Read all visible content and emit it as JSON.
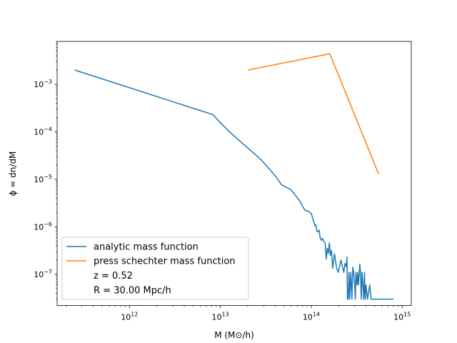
{
  "chart_data": {
    "type": "line",
    "xscale": "log",
    "yscale": "log",
    "xlim": [
      160000000000.0,
      1260000000000000.0
    ],
    "ylim": [
      2.2e-08,
      0.008
    ],
    "xlabel": "M (M⊙/h)",
    "ylabel": "ϕ = dn/dM",
    "x_ticks": [
      {
        "value": 1000000000000.0,
        "base": "10",
        "exp": "12"
      },
      {
        "value": 10000000000000.0,
        "base": "10",
        "exp": "13"
      },
      {
        "value": 100000000000000.0,
        "base": "10",
        "exp": "14"
      },
      {
        "value": 1000000000000000.0,
        "base": "10",
        "exp": "15"
      }
    ],
    "y_ticks": [
      {
        "value": 1e-07,
        "base": "10",
        "exp": "−7"
      },
      {
        "value": 1e-06,
        "base": "10",
        "exp": "−6"
      },
      {
        "value": 1e-05,
        "base": "10",
        "exp": "−5"
      },
      {
        "value": 0.0001,
        "base": "10",
        "exp": "−4"
      },
      {
        "value": 0.001,
        "base": "10",
        "exp": "−3"
      }
    ],
    "legend_position": "lower-left",
    "legend_entries": [
      "analytic mass function",
      "press schechter mass function",
      "z = 0.52",
      "R = 30.00 Mpc/h"
    ],
    "series": [
      {
        "name": "analytic mass function",
        "color": "#1f77b4",
        "points": [
          [
            250000000000.0,
            0.002
          ],
          [
            8300000000000.0,
            0.00023
          ],
          [
            10000000000000.0,
            0.000155
          ],
          [
            13000000000000.0,
            9.5e-05
          ],
          [
            17000000000000.0,
            6e-05
          ],
          [
            22000000000000.0,
            3.9e-05
          ],
          [
            28000000000000.0,
            2.6e-05
          ],
          [
            35000000000000.0,
            1.6e-05
          ],
          [
            40000000000000.0,
            1.2e-05
          ],
          [
            47000000000000.0,
            7.7e-06
          ],
          [
            53000000000000.0,
            6.8e-06
          ],
          [
            60000000000000.0,
            6e-06
          ],
          [
            68000000000000.0,
            4.4e-06
          ],
          [
            75000000000000.0,
            3.5e-06
          ],
          [
            81000000000000.0,
            2.6e-06
          ],
          [
            86000000000000.0,
            2.2e-06
          ],
          [
            92000000000000.0,
            2.15e-06
          ],
          [
            100000000000000.0,
            1.9e-06
          ],
          [
            105000000000000.0,
            1.4e-06
          ],
          [
            110000000000000.0,
            1.05e-06
          ],
          [
            112000000000000.0,
            1.1e-06
          ],
          [
            115000000000000.0,
            8.2e-07
          ],
          [
            118000000000000.0,
            7.8e-07
          ],
          [
            122000000000000.0,
            8.5e-07
          ],
          [
            125000000000000.0,
            6e-07
          ],
          [
            129000000000000.0,
            5.2e-07
          ],
          [
            133000000000000.0,
            5.7e-07
          ],
          [
            137000000000000.0,
            5e-07
          ],
          [
            142000000000000.0,
            4.6e-07
          ],
          [
            146000000000000.0,
            2.1e-07
          ],
          [
            150000000000000.0,
            3.5e-07
          ],
          [
            154000000000000.0,
            2.8e-07
          ],
          [
            158000000000000.0,
            4.6e-07
          ],
          [
            162000000000000.0,
            2.5e-07
          ],
          [
            167000000000000.0,
            3.2e-07
          ],
          [
            172000000000000.0,
            1.35e-07
          ],
          [
            180000000000000.0,
            2.7e-07
          ],
          [
            185000000000000.0,
            1.9e-07
          ],
          [
            190000000000000.0,
            1.35e-07
          ],
          [
            198000000000000.0,
            1.1e-07
          ],
          [
            205000000000000.0,
            1.5e-07
          ],
          [
            212000000000000.0,
            2e-07
          ],
          [
            220000000000000.0,
            1.45e-07
          ],
          [
            228000000000000.0,
            1.1e-07
          ],
          [
            235000000000000.0,
            1.7e-07
          ],
          [
            243000000000000.0,
            1.45e-07
          ],
          [
            247000000000000.0,
            2.3e-07
          ],
          [
            250000000000000.0,
            3e-08
          ],
          [
            255000000000000.0,
            3e-08
          ],
          [
            260000000000000.0,
            1.1e-07
          ],
          [
            265000000000000.0,
            3e-08
          ],
          [
            272000000000000.0,
            1.1e-07
          ],
          [
            280000000000000.0,
            3e-08
          ],
          [
            286000000000000.0,
            1.4e-07
          ],
          [
            293000000000000.0,
            1.1e-07
          ],
          [
            300000000000000.0,
            6e-08
          ],
          [
            305000000000000.0,
            3e-08
          ],
          [
            310000000000000.0,
            1.1e-07
          ],
          [
            318000000000000.0,
            6e-08
          ],
          [
            325000000000000.0,
            1.1e-07
          ],
          [
            330000000000000.0,
            6e-08
          ],
          [
            342000000000000.0,
            1.65e-07
          ],
          [
            348000000000000.0,
            1.1e-07
          ],
          [
            355000000000000.0,
            3e-08
          ],
          [
            362000000000000.0,
            1.1e-07
          ],
          [
            370000000000000.0,
            6e-08
          ],
          [
            378000000000000.0,
            3e-08
          ],
          [
            385000000000000.0,
            1.1e-07
          ],
          [
            392000000000000.0,
            3e-08
          ],
          [
            400000000000000.0,
            6e-08
          ],
          [
            415000000000000.0,
            3e-08
          ],
          [
            440000000000000.0,
            6e-08
          ],
          [
            455000000000000.0,
            3e-08
          ],
          [
            800000000000000.0,
            3e-08
          ]
        ]
      },
      {
        "name": "press schechter mass function",
        "color": "#ff7f0e",
        "points": [
          [
            20000000000000.0,
            0.002
          ],
          [
            160000000000000.0,
            0.0044
          ],
          [
            550000000000000.0,
            1.3e-05
          ]
        ]
      }
    ]
  }
}
